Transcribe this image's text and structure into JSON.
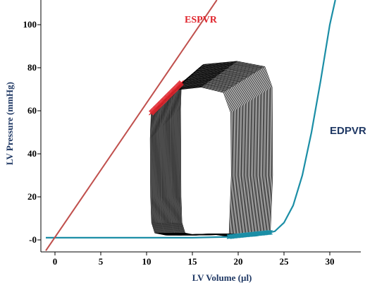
{
  "chart_data": {
    "type": "line",
    "xlabel": "LV Volume (µl)",
    "ylabel": "LV Pressure (mmHg)",
    "xlim": [
      -1.5,
      33
    ],
    "ylim": [
      -5,
      112
    ],
    "x_ticks": [
      {
        "v": 0,
        "label": "0"
      },
      {
        "v": 5,
        "label": "5"
      },
      {
        "v": 10,
        "label": "10"
      },
      {
        "v": 15,
        "label": "15"
      },
      {
        "v": 20,
        "label": "20"
      },
      {
        "v": 25,
        "label": "25"
      },
      {
        "v": 30,
        "label": "30"
      }
    ],
    "y_ticks": [
      {
        "v": 0,
        "label": "-0"
      },
      {
        "v": 20,
        "label": "20"
      },
      {
        "v": 40,
        "label": "40"
      },
      {
        "v": 60,
        "label": "60"
      },
      {
        "v": 80,
        "label": "80"
      },
      {
        "v": 100,
        "label": "100"
      }
    ],
    "grid": false,
    "series": [
      {
        "name": "ESPVR",
        "kind": "line",
        "color": "#c0504d",
        "label_color": "#e0242c",
        "x": [
          -1,
          20
        ],
        "y": [
          -5,
          126
        ]
      },
      {
        "name": "EDPVR",
        "kind": "exponential",
        "color": "#1b8ea6",
        "label_color": "#1f3864",
        "x": [
          -1,
          0,
          5,
          10,
          15,
          20,
          22,
          24,
          25,
          26,
          27,
          28,
          29,
          30,
          30.6
        ],
        "y": [
          1,
          1,
          1,
          1,
          1,
          1.5,
          2.0,
          4,
          8,
          16,
          30,
          50,
          74,
          100,
          115
        ]
      },
      {
        "name": "PV loops",
        "kind": "loops",
        "color": "#000000",
        "loop_count": 46,
        "first_loop": {
          "esv": 10.5,
          "edv": 19.0,
          "peak": 71
        },
        "last_loop": {
          "esv": 13.8,
          "edv": 23.5,
          "peak": 83
        },
        "end_systolic_marker_color": "#e0242c",
        "end_diastolic_marker_color": "#1b8ea6"
      }
    ]
  }
}
